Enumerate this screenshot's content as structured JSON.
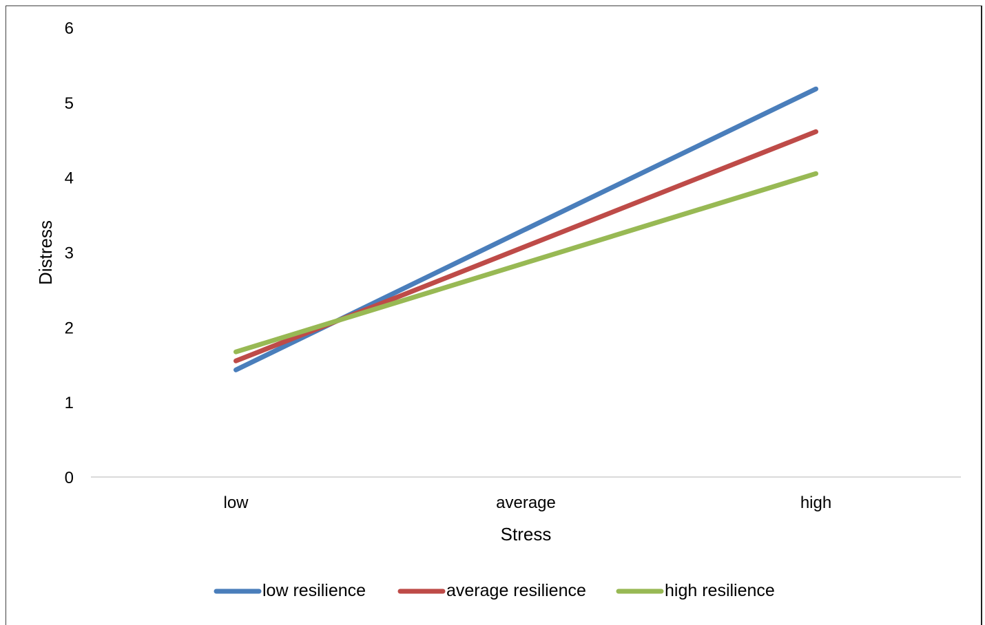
{
  "chart_data": {
    "type": "line",
    "title": "",
    "xlabel": "Stress",
    "ylabel": "Distress",
    "categories": [
      "low",
      "average",
      "high"
    ],
    "ylim": [
      0,
      6
    ],
    "yticks": [
      "0",
      "1",
      "2",
      "3",
      "4",
      "5",
      "6"
    ],
    "grid": false,
    "legend": "bottom",
    "series": [
      {
        "name": "low resilience",
        "color": "#4a7ebb",
        "values": [
          1.43,
          3.31,
          5.18
        ]
      },
      {
        "name": "average resilience",
        "color": "#be4b48",
        "values": [
          1.55,
          3.08,
          4.61
        ]
      },
      {
        "name": "high resilience",
        "color": "#98b954",
        "values": [
          1.67,
          2.86,
          4.05
        ]
      }
    ]
  }
}
